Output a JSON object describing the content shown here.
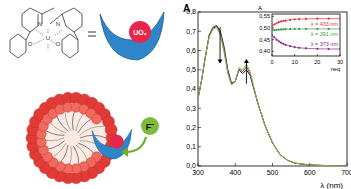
{
  "chart_data": [
    {
      "type": "line",
      "x_label": "λ (nm)",
      "y_label": "A",
      "panel_label": "A",
      "x": [
        300,
        310,
        320,
        330,
        340,
        350,
        360,
        370,
        380,
        390,
        400,
        410,
        420,
        430,
        440,
        450,
        460,
        470,
        480,
        500,
        520,
        540,
        560,
        600,
        650,
        700
      ],
      "series": [
        {
          "color": "#222222",
          "values": [
            0.35,
            0.45,
            0.57,
            0.68,
            0.72,
            0.73,
            0.7,
            0.62,
            0.5,
            0.43,
            0.44,
            0.5,
            0.48,
            0.5,
            0.47,
            0.4,
            0.33,
            0.27,
            0.21,
            0.12,
            0.06,
            0.03,
            0.015,
            0.005,
            0.002,
            0
          ]
        },
        {
          "color": "#9b2f8f",
          "values": [
            0.35,
            0.45,
            0.57,
            0.675,
            0.715,
            0.725,
            0.69,
            0.605,
            0.49,
            0.425,
            0.44,
            0.505,
            0.49,
            0.515,
            0.48,
            0.405,
            0.33,
            0.27,
            0.21,
            0.12,
            0.06,
            0.03,
            0.015,
            0.005,
            0.002,
            0
          ]
        },
        {
          "color": "#7dbb3c",
          "values": [
            0.35,
            0.45,
            0.57,
            0.67,
            0.71,
            0.72,
            0.68,
            0.59,
            0.48,
            0.42,
            0.44,
            0.51,
            0.5,
            0.53,
            0.49,
            0.41,
            0.33,
            0.27,
            0.21,
            0.12,
            0.06,
            0.03,
            0.015,
            0.005,
            0.002,
            0
          ]
        }
      ],
      "xlim": [
        300,
        700
      ],
      "ylim": [
        0,
        0.8
      ],
      "xticks": [
        300,
        400,
        500,
        600,
        700
      ],
      "yticks": [
        {
          "value": 0,
          "label": "0,0"
        },
        {
          "value": 0.1,
          "label": "0,1"
        },
        {
          "value": 0.2,
          "label": "0,2"
        },
        {
          "value": 0.3,
          "label": "0,3"
        },
        {
          "value": 0.4,
          "label": "0,4"
        },
        {
          "value": 0.5,
          "label": "0,5"
        },
        {
          "value": 0.6,
          "label": "0,6"
        },
        {
          "value": 0.7,
          "label": "0,7"
        },
        {
          "value": 0.8,
          "label": "0,8"
        }
      ],
      "line_style": "solid",
      "grid": false
    },
    {
      "type": "line",
      "x_label": "neq",
      "y_label": "A",
      "x": [
        0,
        1,
        2,
        3,
        4,
        5,
        6,
        8,
        10,
        12,
        15,
        20,
        25,
        30
      ],
      "series": [
        {
          "name": "λ = 433 nm",
          "color": "#d9364a",
          "marker": "circle",
          "values": [
            0.51,
            0.515,
            0.52,
            0.525,
            0.528,
            0.53,
            0.532,
            0.535,
            0.537,
            0.538,
            0.539,
            0.54,
            0.54,
            0.54
          ]
        },
        {
          "name": "λ = 391 nm",
          "color": "#3f9a4a",
          "marker": "circle",
          "values": [
            0.49,
            0.491,
            0.492,
            0.493,
            0.494,
            0.494,
            0.495,
            0.495,
            0.496,
            0.496,
            0.496,
            0.496,
            0.496,
            0.496
          ]
        },
        {
          "name": "λ = 373 nm",
          "color": "#8b2a8b",
          "marker": "circle",
          "values": [
            0.47,
            0.46,
            0.45,
            0.443,
            0.437,
            0.432,
            0.428,
            0.422,
            0.418,
            0.415,
            0.413,
            0.411,
            0.41,
            0.41
          ]
        }
      ],
      "xlim": [
        0,
        30
      ],
      "ylim": [
        0.38,
        0.56
      ],
      "xticks": [
        0,
        10,
        20,
        30
      ],
      "yticks": [
        {
          "value": 0.4,
          "label": "0,40"
        },
        {
          "value": 0.45,
          "label": "0,45"
        },
        {
          "value": 0.5,
          "label": "0,50"
        },
        {
          "value": 0.55,
          "label": "0,55"
        }
      ],
      "grid": false
    }
  ],
  "diagram": {
    "metal_label": "UO₂",
    "anion_label": "F⁻",
    "atoms": [
      "N",
      "N",
      "O",
      "O",
      "U"
    ]
  }
}
